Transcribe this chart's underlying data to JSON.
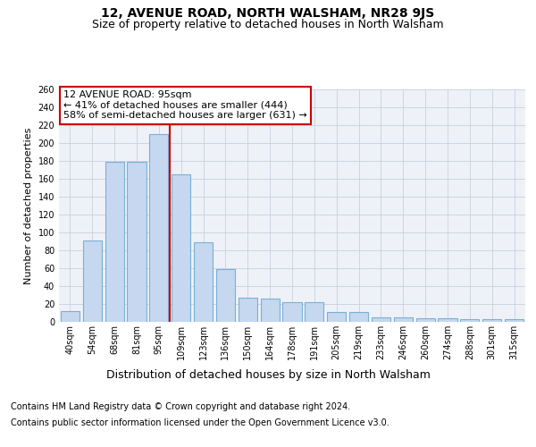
{
  "title": "12, AVENUE ROAD, NORTH WALSHAM, NR28 9JS",
  "subtitle": "Size of property relative to detached houses in North Walsham",
  "xlabel": "Distribution of detached houses by size in North Walsham",
  "ylabel": "Number of detached properties",
  "categories": [
    "40sqm",
    "54sqm",
    "68sqm",
    "81sqm",
    "95sqm",
    "109sqm",
    "123sqm",
    "136sqm",
    "150sqm",
    "164sqm",
    "178sqm",
    "191sqm",
    "205sqm",
    "219sqm",
    "233sqm",
    "246sqm",
    "260sqm",
    "274sqm",
    "288sqm",
    "301sqm",
    "315sqm"
  ],
  "values": [
    12,
    91,
    179,
    179,
    210,
    165,
    89,
    59,
    27,
    26,
    22,
    22,
    11,
    11,
    5,
    5,
    4,
    4,
    3,
    3,
    3
  ],
  "bar_color": "#c5d8f0",
  "bar_edge_color": "#7bafd4",
  "vline_x": 4.5,
  "vline_color": "#cc0000",
  "annotation_text": "12 AVENUE ROAD: 95sqm\n← 41% of detached houses are smaller (444)\n58% of semi-detached houses are larger (631) →",
  "annotation_box_color": "#ffffff",
  "annotation_box_edge_color": "#cc0000",
  "ylim": [
    0,
    260
  ],
  "yticks": [
    0,
    20,
    40,
    60,
    80,
    100,
    120,
    140,
    160,
    180,
    200,
    220,
    240,
    260
  ],
  "footer_line1": "Contains HM Land Registry data © Crown copyright and database right 2024.",
  "footer_line2": "Contains public sector information licensed under the Open Government Licence v3.0.",
  "bg_color": "#ffffff",
  "plot_bg_color": "#eef2f8",
  "title_fontsize": 10,
  "subtitle_fontsize": 9,
  "ylabel_fontsize": 8,
  "xlabel_fontsize": 9,
  "footer_fontsize": 7,
  "tick_fontsize": 7,
  "ann_fontsize": 8
}
